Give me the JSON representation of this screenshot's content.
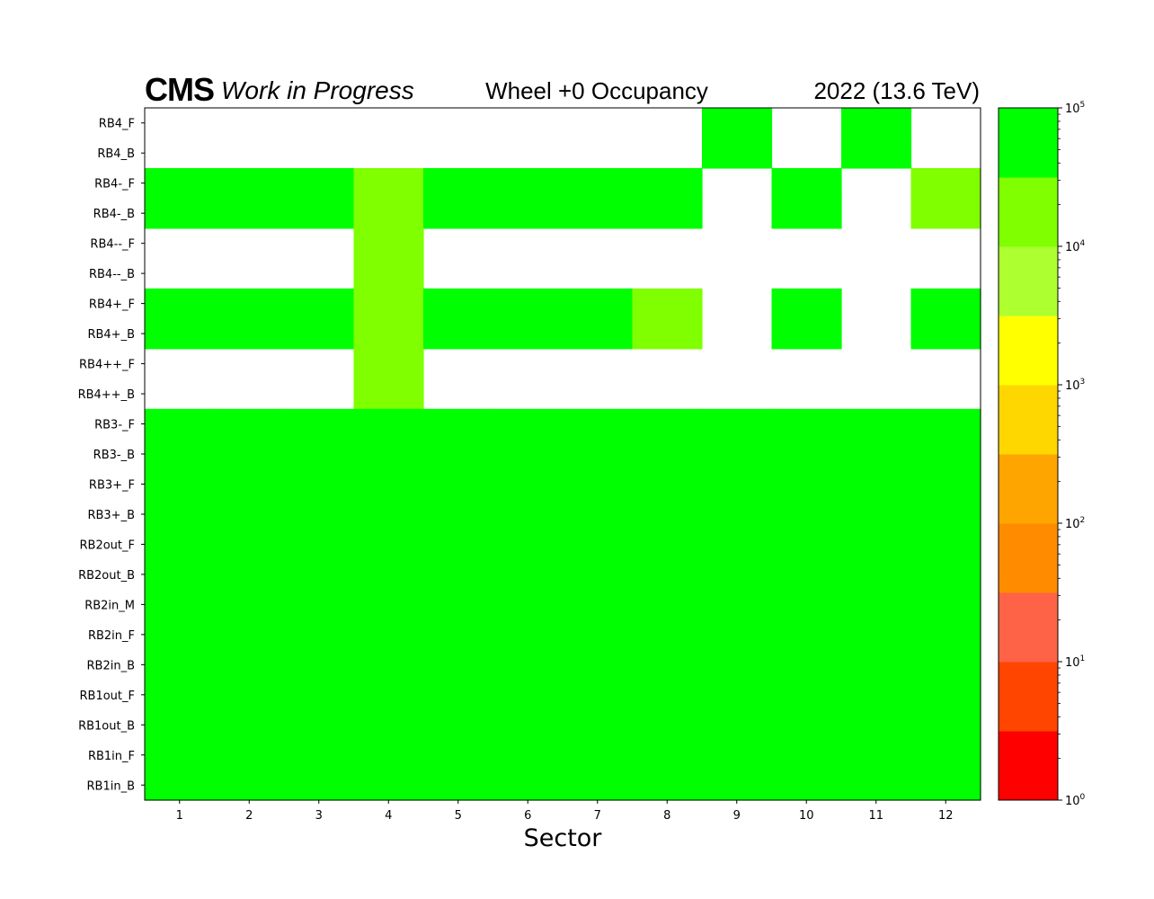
{
  "header": {
    "experiment": "CMS",
    "status": "Work in Progress",
    "title": "Wheel +0 Occupancy",
    "lumi": "2022 (13.6 TeV)"
  },
  "chart_data": {
    "type": "heatmap",
    "title": "Wheel +0 Occupancy",
    "xlabel": "Sector",
    "ylabel": "",
    "x_categories": [
      "1",
      "2",
      "3",
      "4",
      "5",
      "6",
      "7",
      "8",
      "9",
      "10",
      "11",
      "12"
    ],
    "y_categories": [
      "RB4_F",
      "RB4_B",
      "RB4-_F",
      "RB4-_B",
      "RB4--_F",
      "RB4--_B",
      "RB4+_F",
      "RB4+_B",
      "RB4++_F",
      "RB4++_B",
      "RB3-_F",
      "RB3-_B",
      "RB3+_F",
      "RB3+_B",
      "RB2out_F",
      "RB2out_B",
      "RB2in_M",
      "RB2in_F",
      "RB2in_B",
      "RB1out_F",
      "RB1out_B",
      "RB1in_F",
      "RB1in_B"
    ],
    "value_note": "cell values are occupancy counts (log scale); null = empty (white)",
    "values": [
      [
        null,
        null,
        null,
        null,
        null,
        null,
        null,
        null,
        60000,
        null,
        60000,
        null
      ],
      [
        null,
        null,
        null,
        null,
        null,
        null,
        null,
        null,
        60000,
        null,
        60000,
        null
      ],
      [
        60000,
        60000,
        60000,
        20000,
        60000,
        60000,
        60000,
        60000,
        null,
        60000,
        null,
        20000
      ],
      [
        60000,
        60000,
        60000,
        20000,
        60000,
        60000,
        60000,
        60000,
        null,
        60000,
        null,
        20000
      ],
      [
        null,
        null,
        null,
        20000,
        null,
        null,
        null,
        null,
        null,
        null,
        null,
        null
      ],
      [
        null,
        null,
        null,
        20000,
        null,
        null,
        null,
        null,
        null,
        null,
        null,
        null
      ],
      [
        60000,
        60000,
        60000,
        20000,
        60000,
        60000,
        60000,
        20000,
        null,
        60000,
        null,
        60000
      ],
      [
        60000,
        60000,
        60000,
        20000,
        60000,
        60000,
        60000,
        20000,
        null,
        60000,
        null,
        60000
      ],
      [
        null,
        null,
        null,
        20000,
        null,
        null,
        null,
        null,
        null,
        null,
        null,
        null
      ],
      [
        null,
        null,
        null,
        20000,
        null,
        null,
        null,
        null,
        null,
        null,
        null,
        null
      ],
      [
        60000,
        60000,
        60000,
        60000,
        60000,
        60000,
        60000,
        60000,
        60000,
        60000,
        60000,
        60000
      ],
      [
        60000,
        60000,
        60000,
        60000,
        60000,
        60000,
        60000,
        60000,
        60000,
        60000,
        60000,
        60000
      ],
      [
        60000,
        60000,
        60000,
        60000,
        60000,
        60000,
        60000,
        60000,
        60000,
        60000,
        60000,
        60000
      ],
      [
        60000,
        60000,
        60000,
        60000,
        60000,
        60000,
        60000,
        60000,
        60000,
        60000,
        60000,
        60000
      ],
      [
        60000,
        60000,
        60000,
        60000,
        60000,
        60000,
        60000,
        60000,
        60000,
        60000,
        60000,
        60000
      ],
      [
        60000,
        60000,
        60000,
        60000,
        60000,
        60000,
        60000,
        60000,
        60000,
        60000,
        60000,
        60000
      ],
      [
        60000,
        60000,
        60000,
        60000,
        60000,
        60000,
        60000,
        60000,
        60000,
        60000,
        60000,
        60000
      ],
      [
        60000,
        60000,
        60000,
        60000,
        60000,
        60000,
        60000,
        60000,
        60000,
        60000,
        60000,
        60000
      ],
      [
        60000,
        60000,
        60000,
        60000,
        60000,
        60000,
        60000,
        60000,
        60000,
        60000,
        60000,
        60000
      ],
      [
        60000,
        60000,
        60000,
        60000,
        60000,
        60000,
        60000,
        60000,
        60000,
        60000,
        60000,
        60000
      ],
      [
        60000,
        60000,
        60000,
        60000,
        60000,
        60000,
        60000,
        60000,
        60000,
        60000,
        60000,
        60000
      ],
      [
        60000,
        60000,
        60000,
        60000,
        60000,
        60000,
        60000,
        60000,
        60000,
        60000,
        60000,
        60000
      ],
      [
        60000,
        60000,
        60000,
        60000,
        60000,
        60000,
        60000,
        60000,
        60000,
        60000,
        60000,
        60000
      ]
    ],
    "colorbar": {
      "scale": "log",
      "range": [
        1,
        100000
      ],
      "bins_log10_edges": [
        0,
        0.5,
        1,
        1.5,
        2,
        2.5,
        3,
        3.5,
        4,
        4.5,
        5
      ],
      "colors": [
        "#ff0000",
        "#ff4500",
        "#ff6347",
        "#ff8c00",
        "#ffa500",
        "#ffd700",
        "#ffff00",
        "#adff2f",
        "#7fff00",
        "#00ff00"
      ],
      "ticks": [
        {
          "base": "10",
          "exp": "0",
          "value": 1
        },
        {
          "base": "10",
          "exp": "1",
          "value": 10
        },
        {
          "base": "10",
          "exp": "2",
          "value": 100
        },
        {
          "base": "10",
          "exp": "3",
          "value": 1000
        },
        {
          "base": "10",
          "exp": "4",
          "value": 10000
        },
        {
          "base": "10",
          "exp": "5",
          "value": 100000
        }
      ]
    }
  }
}
